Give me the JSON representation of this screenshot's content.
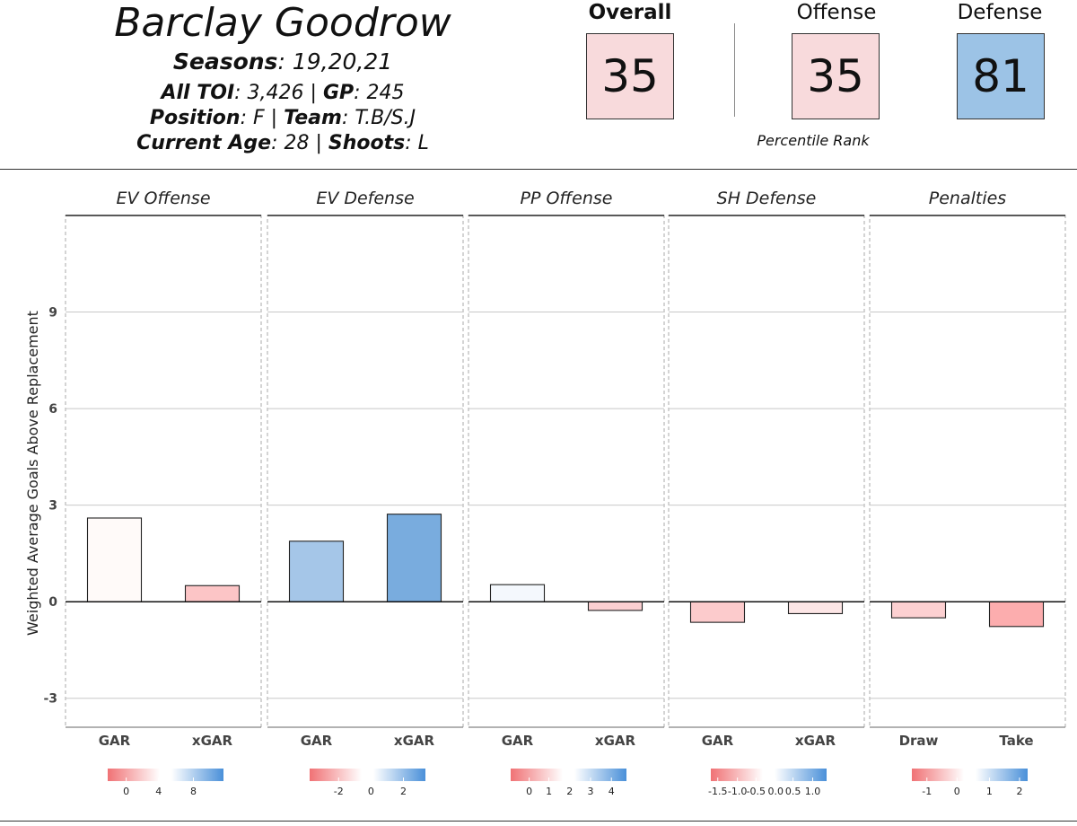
{
  "player": {
    "name": "Barclay Goodrow",
    "seasons_label": "Seasons",
    "seasons_value": ": 19,20,21",
    "toi_label": "All TOI",
    "toi_value": ": 3,426 | ",
    "gp_label": "GP",
    "gp_value": ": 245",
    "position_label": "Position",
    "position_value": ": F | ",
    "team_label": "Team",
    "team_value": ": T.B/S.J",
    "age_label": "Current Age",
    "age_value": ": 28 | ",
    "shoots_label": "Shoots",
    "shoots_value": ": L"
  },
  "ranks": {
    "overall_title": "Overall",
    "overall_value": "35",
    "overall_color": "#f8dadc",
    "offense_title": "Offense",
    "offense_value": "35",
    "offense_color": "#f8dadc",
    "defense_title": "Defense",
    "defense_value": "81",
    "defense_color": "#9cc3e6",
    "footnote": "Percentile Rank"
  },
  "chart_data": {
    "type": "bar",
    "ylabel": "Weighted Average Goals Above Replacement",
    "ylim": [
      -3.9,
      12.0
    ],
    "yticks": [
      -3,
      0,
      3,
      6,
      9
    ],
    "grid": true,
    "panels": [
      {
        "title": "EV Offense",
        "categories": [
          "GAR",
          "xGAR"
        ],
        "values": [
          2.6,
          0.5
        ],
        "colors": [
          "#fffaf9",
          "#fcc5c6"
        ],
        "legend": {
          "ticks": [
            "0",
            "4",
            "8"
          ],
          "tick_pos": [
            0.16,
            0.44,
            0.74
          ]
        }
      },
      {
        "title": "EV Defense",
        "categories": [
          "GAR",
          "xGAR"
        ],
        "values": [
          1.88,
          2.72
        ],
        "colors": [
          "#a5c6e8",
          "#79acde"
        ],
        "legend": {
          "ticks": [
            "-2",
            "0",
            "2"
          ],
          "tick_pos": [
            0.25,
            0.53,
            0.81
          ]
        }
      },
      {
        "title": "PP Offense",
        "categories": [
          "GAR",
          "xGAR"
        ],
        "values": [
          0.53,
          -0.27
        ],
        "colors": [
          "#f4f8fd",
          "#fbcfd1"
        ],
        "legend": {
          "ticks": [
            "0",
            "1",
            "2",
            "3",
            "4"
          ],
          "tick_pos": [
            0.16,
            0.33,
            0.51,
            0.69,
            0.87
          ]
        }
      },
      {
        "title": "SH Defense",
        "categories": [
          "GAR",
          "xGAR"
        ],
        "values": [
          -0.64,
          -0.37
        ],
        "colors": [
          "#fccbcc",
          "#fde6e6"
        ],
        "legend": {
          "ticks": [
            "-1.5",
            "-1.0",
            "-0.5",
            "0.0",
            "0.5",
            "1.0"
          ],
          "tick_pos": [
            0.06,
            0.23,
            0.39,
            0.56,
            0.71,
            0.88
          ]
        }
      },
      {
        "title": "Penalties",
        "categories": [
          "Draw",
          "Take"
        ],
        "values": [
          -0.5,
          -0.77
        ],
        "colors": [
          "#fcd0d1",
          "#fcadae"
        ],
        "legend": {
          "ticks": [
            "-1",
            "0",
            "1",
            "2"
          ],
          "tick_pos": [
            0.13,
            0.39,
            0.67,
            0.93
          ]
        }
      }
    ]
  }
}
